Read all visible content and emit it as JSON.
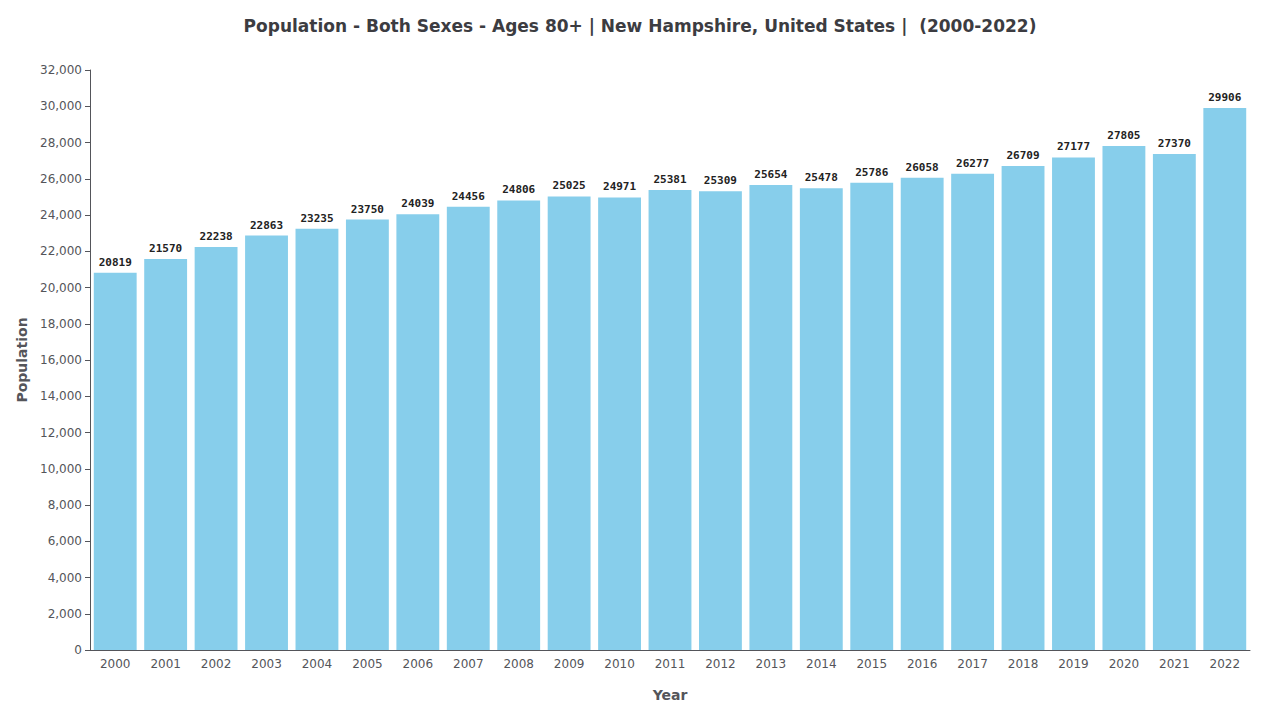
{
  "chart_data": {
    "type": "bar",
    "title": "Population - Both Sexes - Ages 80+ | New Hampshire, United States |  (2000-2022)",
    "xlabel": "Year",
    "ylabel": "Population",
    "categories": [
      "2000",
      "2001",
      "2002",
      "2003",
      "2004",
      "2005",
      "2006",
      "2007",
      "2008",
      "2009",
      "2010",
      "2011",
      "2012",
      "2013",
      "2014",
      "2015",
      "2016",
      "2017",
      "2018",
      "2019",
      "2020",
      "2021",
      "2022"
    ],
    "values": [
      20819,
      21570,
      22238,
      22863,
      23235,
      23750,
      24039,
      24456,
      24806,
      25025,
      24971,
      25381,
      25309,
      25654,
      25478,
      25786,
      26058,
      26277,
      26709,
      27177,
      27805,
      27370,
      29906
    ],
    "color": "#87CEEB",
    "ylim": [
      0,
      32000
    ],
    "yticks": [
      0,
      2000,
      4000,
      6000,
      8000,
      10000,
      12000,
      14000,
      16000,
      18000,
      20000,
      22000,
      24000,
      26000,
      28000,
      30000,
      32000
    ],
    "grid": false,
    "data_labels": true
  }
}
